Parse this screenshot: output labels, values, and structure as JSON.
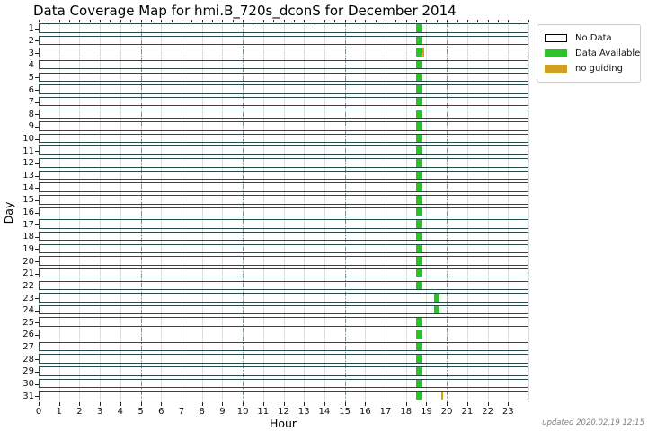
{
  "page": {
    "footer": "updated 2020.02.19 12:15"
  },
  "chart_data": {
    "type": "heatmap",
    "title": "Data Coverage Map for hmi.B_720s_dconS for December 2014",
    "xlabel": "Hour",
    "ylabel": "Day",
    "xlim": [
      0,
      24
    ],
    "x_ticks": [
      0,
      1,
      2,
      3,
      4,
      5,
      6,
      7,
      8,
      9,
      10,
      11,
      12,
      13,
      14,
      15,
      16,
      17,
      18,
      19,
      20,
      21,
      22,
      23
    ],
    "days": [
      1,
      2,
      3,
      4,
      5,
      6,
      7,
      8,
      9,
      10,
      11,
      12,
      13,
      14,
      15,
      16,
      17,
      18,
      19,
      20,
      21,
      22,
      23,
      24,
      25,
      26,
      27,
      28,
      29,
      30,
      31
    ],
    "major_vlines_hours": [
      5,
      10,
      15,
      20
    ],
    "grid": true,
    "legend_position": "upper right, outside plot",
    "colors": {
      "available": "#2ec12e",
      "no_guiding": "#d1a01f",
      "no_data": "#ffffff",
      "row_border": "#2b4a4a",
      "minor_grid": "#dcdcdc",
      "major_grid": "#7f9090"
    },
    "legend": [
      {
        "label": "No Data",
        "kind": "no_data",
        "color": "#ffffff",
        "border": "#000000"
      },
      {
        "label": "Data Available",
        "kind": "available",
        "color": "#2ec12e",
        "border": "#2ec12e"
      },
      {
        "label": "no guiding",
        "kind": "no_guiding",
        "color": "#d1a01f",
        "border": "#d1a01f"
      }
    ],
    "segments": [
      {
        "day": 1,
        "kind": "available",
        "start": 18.5,
        "end": 18.75
      },
      {
        "day": 2,
        "kind": "available",
        "start": 18.5,
        "end": 18.75
      },
      {
        "day": 3,
        "kind": "available",
        "start": 18.5,
        "end": 18.75
      },
      {
        "day": 3,
        "kind": "no_guiding",
        "start": 18.79,
        "end": 18.87
      },
      {
        "day": 4,
        "kind": "available",
        "start": 18.5,
        "end": 18.75
      },
      {
        "day": 5,
        "kind": "available",
        "start": 18.5,
        "end": 18.75
      },
      {
        "day": 6,
        "kind": "available",
        "start": 18.5,
        "end": 18.75
      },
      {
        "day": 7,
        "kind": "available",
        "start": 18.5,
        "end": 18.75
      },
      {
        "day": 8,
        "kind": "available",
        "start": 18.5,
        "end": 18.75
      },
      {
        "day": 9,
        "kind": "available",
        "start": 18.5,
        "end": 18.75
      },
      {
        "day": 10,
        "kind": "available",
        "start": 18.5,
        "end": 18.75
      },
      {
        "day": 11,
        "kind": "available",
        "start": 18.5,
        "end": 18.75
      },
      {
        "day": 12,
        "kind": "available",
        "start": 18.5,
        "end": 18.75
      },
      {
        "day": 13,
        "kind": "available",
        "start": 18.5,
        "end": 18.75
      },
      {
        "day": 14,
        "kind": "available",
        "start": 18.5,
        "end": 18.75
      },
      {
        "day": 15,
        "kind": "available",
        "start": 18.5,
        "end": 18.75
      },
      {
        "day": 16,
        "kind": "available",
        "start": 18.5,
        "end": 18.75
      },
      {
        "day": 17,
        "kind": "available",
        "start": 18.5,
        "end": 18.75
      },
      {
        "day": 18,
        "kind": "available",
        "start": 18.5,
        "end": 18.75
      },
      {
        "day": 19,
        "kind": "available",
        "start": 18.5,
        "end": 18.75
      },
      {
        "day": 20,
        "kind": "available",
        "start": 18.5,
        "end": 18.75
      },
      {
        "day": 21,
        "kind": "available",
        "start": 18.5,
        "end": 18.75
      },
      {
        "day": 22,
        "kind": "available",
        "start": 18.5,
        "end": 18.75
      },
      {
        "day": 23,
        "kind": "available",
        "start": 19.38,
        "end": 19.64
      },
      {
        "day": 24,
        "kind": "available",
        "start": 19.38,
        "end": 19.64
      },
      {
        "day": 25,
        "kind": "available",
        "start": 18.5,
        "end": 18.75
      },
      {
        "day": 26,
        "kind": "available",
        "start": 18.5,
        "end": 18.75
      },
      {
        "day": 27,
        "kind": "available",
        "start": 18.5,
        "end": 18.75
      },
      {
        "day": 28,
        "kind": "available",
        "start": 18.5,
        "end": 18.75
      },
      {
        "day": 29,
        "kind": "available",
        "start": 18.5,
        "end": 18.75
      },
      {
        "day": 30,
        "kind": "available",
        "start": 18.5,
        "end": 18.75
      },
      {
        "day": 31,
        "kind": "available",
        "start": 18.5,
        "end": 18.75
      },
      {
        "day": 31,
        "kind": "no_guiding",
        "start": 19.73,
        "end": 19.82
      }
    ]
  }
}
